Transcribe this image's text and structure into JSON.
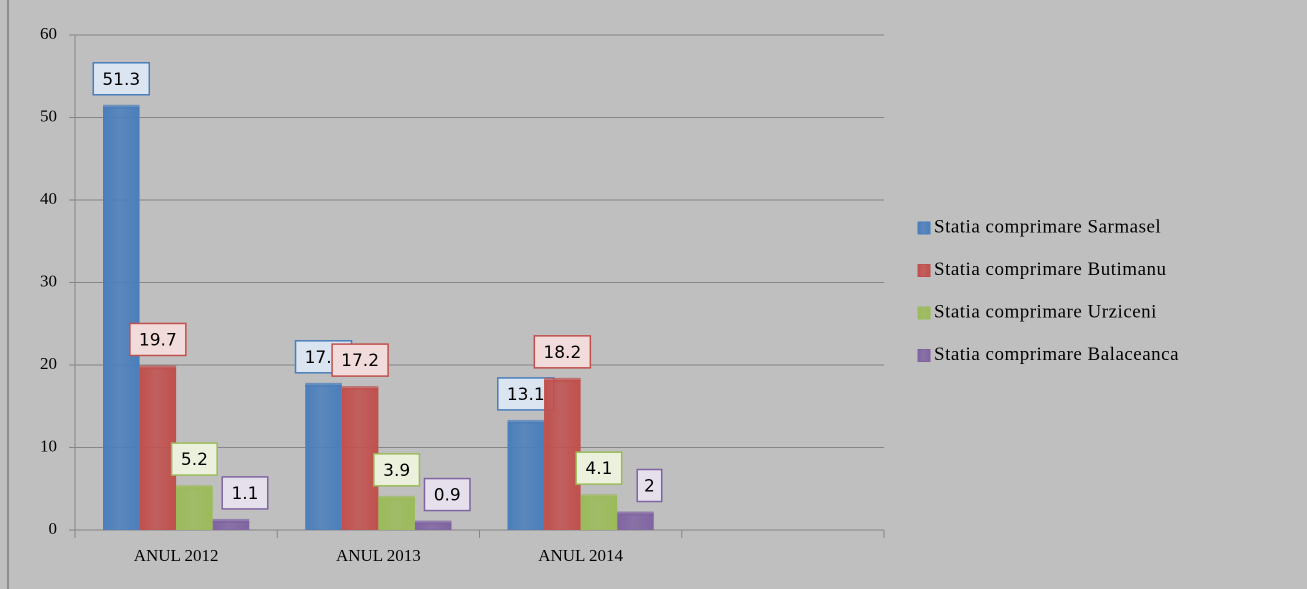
{
  "chart_data": {
    "type": "bar",
    "categories": [
      "ANUL 2012",
      "ANUL 2013",
      "ANUL 2014",
      null
    ],
    "series": [
      {
        "name": "Statia comprimare Sarmasel",
        "color": "#4a7ebb",
        "label_fill": "#dbe5f1",
        "values": [
          51.3,
          17.6,
          13.1,
          null
        ]
      },
      {
        "name": "Statia comprimare Butimanu",
        "color": "#c0504d",
        "label_fill": "#f2dcdb",
        "values": [
          19.7,
          17.2,
          18.2,
          null
        ]
      },
      {
        "name": "Statia comprimare Urziceni",
        "color": "#9bbb59",
        "label_fill": "#ebf1dd",
        "values": [
          5.2,
          3.9,
          4.1,
          null
        ]
      },
      {
        "name": "Statia comprimare Balaceanca",
        "color": "#8064a2",
        "label_fill": "#e5e0ec",
        "values": [
          1.1,
          0.9,
          2,
          null
        ]
      }
    ],
    "ylim": [
      0,
      60
    ],
    "yticks": [
      0,
      10,
      20,
      30,
      40,
      50,
      60
    ],
    "grid": true,
    "legend": "right"
  }
}
